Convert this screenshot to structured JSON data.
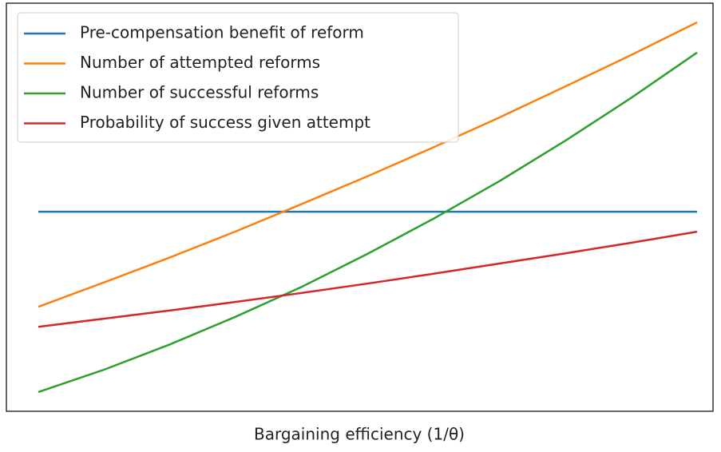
{
  "chart_data": {
    "type": "line",
    "x_label": "Bargaining efficiency (1/θ)",
    "x": [
      0,
      0.1,
      0.2,
      0.3,
      0.4,
      0.5,
      0.6,
      0.7,
      0.8,
      0.9,
      1
    ],
    "xlim": [
      -0.0485,
      1.0242
    ],
    "ylim": [
      0,
      1
    ],
    "legend": "upper left",
    "series": [
      {
        "name": "Pre-compensation benefit of reform",
        "color": "#1f77b4",
        "values": [
          0.489,
          0.489,
          0.489,
          0.489,
          0.489,
          0.489,
          0.489,
          0.489,
          0.489,
          0.489,
          0.489
        ]
      },
      {
        "name": "Number of attempted reforms",
        "color": "#ff7f0e",
        "values": [
          0.256,
          0.316,
          0.377,
          0.441,
          0.508,
          0.576,
          0.647,
          0.72,
          0.796,
          0.873,
          0.953
        ]
      },
      {
        "name": "Number of successful reforms",
        "color": "#2ca02c",
        "values": [
          0.047,
          0.102,
          0.164,
          0.232,
          0.305,
          0.386,
          0.472,
          0.564,
          0.663,
          0.768,
          0.879
        ]
      },
      {
        "name": "Probability of success given attempt",
        "color": "#d62728",
        "values": [
          0.207,
          0.227,
          0.247,
          0.268,
          0.29,
          0.313,
          0.337,
          0.362,
          0.387,
          0.413,
          0.44
        ]
      }
    ]
  }
}
